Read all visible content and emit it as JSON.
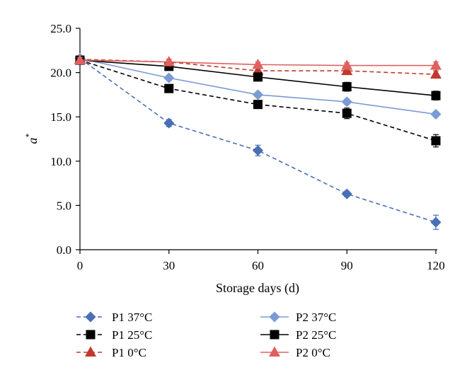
{
  "chart_data": {
    "type": "line",
    "xlabel": "Storage days (d)",
    "ylabel": "a",
    "ylabel_sup": "*",
    "x": [
      0,
      30,
      60,
      90,
      120
    ],
    "xticks": [
      "0",
      "30",
      "60",
      "90",
      "120"
    ],
    "yticks": [
      "0.0",
      "5.0",
      "10.0",
      "15.0",
      "20.0",
      "25.0"
    ],
    "xlim": [
      0,
      120
    ],
    "ylim": [
      0,
      25
    ],
    "grid": false,
    "legend_position": "bottom",
    "series": [
      {
        "name": "P1 37°C",
        "color": "#4a6fb5",
        "dashed": true,
        "marker": "diamond",
        "values": [
          21.6,
          14.3,
          11.2,
          6.3,
          3.1
        ],
        "errors": [
          0.3,
          0.4,
          0.6,
          0.3,
          0.8
        ]
      },
      {
        "name": "P1 25°C",
        "color": "#000000",
        "dashed": true,
        "marker": "square",
        "values": [
          21.4,
          18.2,
          16.4,
          15.4,
          12.3
        ],
        "errors": [
          0.3,
          0.4,
          0.4,
          0.6,
          0.7
        ]
      },
      {
        "name": "P1 0°C",
        "color": "#c0392b",
        "dashed": true,
        "marker": "triangle",
        "values": [
          21.5,
          21.2,
          20.2,
          20.2,
          19.8
        ],
        "errors": [
          0.3,
          0.3,
          0.3,
          0.4,
          0.4
        ]
      },
      {
        "name": "P2 37°C",
        "color": "#7b9bd4",
        "dashed": false,
        "marker": "diamond",
        "values": [
          21.6,
          19.4,
          17.5,
          16.7,
          15.3
        ],
        "errors": [
          0.3,
          0.3,
          0.3,
          0.3,
          0.3
        ]
      },
      {
        "name": "P2 25°C",
        "color": "#000000",
        "dashed": false,
        "marker": "square",
        "values": [
          21.4,
          20.7,
          19.5,
          18.4,
          17.4
        ],
        "errors": [
          0.3,
          0.3,
          0.4,
          0.5,
          0.5
        ]
      },
      {
        "name": "P2 0°C",
        "color": "#e06060",
        "dashed": false,
        "marker": "triangle",
        "values": [
          21.4,
          21.2,
          20.9,
          20.8,
          20.8
        ],
        "errors": [
          0.3,
          0.3,
          0.3,
          0.3,
          0.4
        ]
      }
    ]
  }
}
